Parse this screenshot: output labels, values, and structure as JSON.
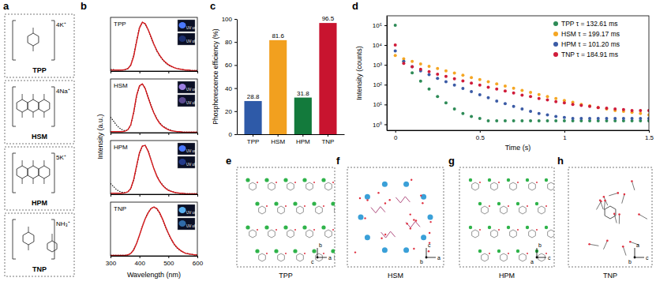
{
  "panel_labels": [
    "a",
    "b",
    "c",
    "d",
    "e",
    "f",
    "g",
    "h"
  ],
  "structures": [
    {
      "name": "TPP",
      "counterion": "4K⁺"
    },
    {
      "name": "HSM",
      "counterion": "4Na⁺"
    },
    {
      "name": "HPM",
      "counterion": "5K⁺"
    },
    {
      "name": "TNP",
      "counterion": "NH₃⁺"
    }
  ],
  "crystals": [
    {
      "name": "TPP",
      "axes": [
        "b",
        "a",
        "c"
      ]
    },
    {
      "name": "HSM",
      "axes": [
        "c",
        "a",
        "b"
      ]
    },
    {
      "name": "HPM",
      "axes": [
        "b",
        "c",
        "a"
      ]
    },
    {
      "name": "TNP",
      "axes": [
        "a",
        "c",
        "b"
      ]
    }
  ],
  "chart_data": [
    {
      "type": "line",
      "title": "TPP",
      "annotations": [
        "UV on",
        "UV off"
      ],
      "x": [
        300,
        310,
        320,
        330,
        340,
        350,
        360,
        370,
        380,
        390,
        400,
        410,
        420,
        430,
        440,
        450,
        460,
        470,
        480,
        490,
        500,
        510,
        520,
        530,
        540,
        550,
        560,
        570,
        580,
        590,
        600
      ],
      "series": [
        {
          "color": "#d7191c",
          "line_style": "solid",
          "values": [
            0.02,
            0.02,
            0.02,
            0.02,
            0.02,
            0.03,
            0.05,
            0.12,
            0.3,
            0.6,
            0.88,
            1.0,
            0.97,
            0.85,
            0.7,
            0.55,
            0.42,
            0.32,
            0.24,
            0.18,
            0.13,
            0.1,
            0.07,
            0.05,
            0.04,
            0.03,
            0.02,
            0.02,
            0.01,
            0.01,
            0.01
          ]
        },
        {
          "color": "#000000",
          "line_style": "dotted",
          "values": [
            0.03,
            0.03,
            0.02,
            0.02,
            0.02,
            0.03,
            0.05,
            0.13,
            0.32,
            0.62,
            0.9,
            1.0,
            0.96,
            0.84,
            0.69,
            0.54,
            0.41,
            0.31,
            0.23,
            0.17,
            0.12,
            0.09,
            0.07,
            0.05,
            0.04,
            0.03,
            0.02,
            0.02,
            0.01,
            0.01,
            0.01
          ]
        }
      ],
      "xlim": [
        300,
        600
      ],
      "ylim": [
        0,
        1.1
      ],
      "xticks": [
        300,
        400,
        500,
        600
      ],
      "tick_labels": false
    },
    {
      "type": "line",
      "title": "HSM",
      "annotations": [
        "UV on",
        "UV off"
      ],
      "x": [
        300,
        310,
        320,
        330,
        340,
        350,
        360,
        370,
        380,
        390,
        400,
        410,
        420,
        430,
        440,
        450,
        460,
        470,
        480,
        490,
        500,
        510,
        520,
        530,
        540,
        550,
        560,
        570,
        580,
        590,
        600
      ],
      "series": [
        {
          "color": "#d7191c",
          "line_style": "solid",
          "values": [
            0.02,
            0.02,
            0.02,
            0.02,
            0.02,
            0.03,
            0.06,
            0.16,
            0.42,
            0.76,
            0.96,
            1.0,
            0.9,
            0.72,
            0.55,
            0.4,
            0.28,
            0.19,
            0.13,
            0.09,
            0.06,
            0.04,
            0.03,
            0.02,
            0.02,
            0.01,
            0.01,
            0.01,
            0.01,
            0.01,
            0.01
          ]
        },
        {
          "color": "#000000",
          "line_style": "dotted",
          "values": [
            0.32,
            0.24,
            0.16,
            0.1,
            0.06,
            0.04,
            0.06,
            0.15,
            0.4,
            0.74,
            0.95,
            1.0,
            0.91,
            0.73,
            0.56,
            0.41,
            0.29,
            0.2,
            0.14,
            0.1,
            0.07,
            0.05,
            0.03,
            0.02,
            0.02,
            0.01,
            0.01,
            0.01,
            0.01,
            0.01,
            0.01
          ]
        }
      ],
      "xlim": [
        300,
        600
      ],
      "ylim": [
        0,
        1.1
      ],
      "xticks": [
        300,
        400,
        500,
        600
      ],
      "tick_labels": false
    },
    {
      "type": "line",
      "title": "HPM",
      "annotations": [
        "UV on",
        "UV off"
      ],
      "x": [
        300,
        310,
        320,
        330,
        340,
        350,
        360,
        370,
        380,
        390,
        400,
        410,
        420,
        430,
        440,
        450,
        460,
        470,
        480,
        490,
        500,
        510,
        520,
        530,
        540,
        550,
        560,
        570,
        580,
        590,
        600
      ],
      "series": [
        {
          "color": "#d7191c",
          "line_style": "solid",
          "values": [
            0.02,
            0.02,
            0.02,
            0.02,
            0.02,
            0.03,
            0.05,
            0.12,
            0.3,
            0.58,
            0.85,
            0.99,
            1.0,
            0.88,
            0.7,
            0.52,
            0.37,
            0.26,
            0.18,
            0.12,
            0.08,
            0.06,
            0.04,
            0.03,
            0.02,
            0.02,
            0.01,
            0.01,
            0.01,
            0.01,
            0.01
          ]
        },
        {
          "color": "#000000",
          "line_style": "dotted",
          "values": [
            0.22,
            0.16,
            0.1,
            0.06,
            0.04,
            0.03,
            0.05,
            0.11,
            0.28,
            0.56,
            0.84,
            0.98,
            1.0,
            0.89,
            0.71,
            0.53,
            0.38,
            0.27,
            0.19,
            0.13,
            0.09,
            0.06,
            0.04,
            0.03,
            0.02,
            0.02,
            0.01,
            0.01,
            0.01,
            0.01,
            0.01
          ]
        }
      ],
      "xlim": [
        300,
        600
      ],
      "ylim": [
        0,
        1.1
      ],
      "xticks": [
        300,
        400,
        500,
        600
      ],
      "tick_labels": false
    },
    {
      "type": "line",
      "title": "TNP",
      "annotations": [
        "UV on",
        "UV off"
      ],
      "x_label": "Wavelength (nm)",
      "y_label": "Intensity (a.u.)",
      "x": [
        300,
        310,
        320,
        330,
        340,
        350,
        360,
        370,
        380,
        390,
        400,
        410,
        420,
        430,
        440,
        450,
        460,
        470,
        480,
        490,
        500,
        510,
        520,
        530,
        540,
        550,
        560,
        570,
        580,
        590,
        600
      ],
      "series": [
        {
          "color": "#d7191c",
          "line_style": "solid",
          "values": [
            0.01,
            0.01,
            0.01,
            0.01,
            0.01,
            0.01,
            0.02,
            0.05,
            0.12,
            0.25,
            0.42,
            0.6,
            0.76,
            0.88,
            0.97,
            1.0,
            0.97,
            0.88,
            0.75,
            0.6,
            0.46,
            0.34,
            0.24,
            0.17,
            0.12,
            0.08,
            0.05,
            0.04,
            0.03,
            0.02,
            0.02
          ]
        },
        {
          "color": "#000000",
          "line_style": "dotted",
          "values": [
            0.01,
            0.01,
            0.01,
            0.01,
            0.01,
            0.01,
            0.02,
            0.05,
            0.13,
            0.26,
            0.43,
            0.61,
            0.77,
            0.89,
            0.97,
            1.0,
            0.96,
            0.87,
            0.74,
            0.59,
            0.45,
            0.33,
            0.23,
            0.16,
            0.11,
            0.08,
            0.05,
            0.04,
            0.03,
            0.02,
            0.02
          ]
        }
      ],
      "xlim": [
        300,
        600
      ],
      "ylim": [
        0,
        1.1
      ],
      "xticks": [
        300,
        400,
        500,
        600
      ],
      "tick_labels": "x"
    },
    {
      "type": "bar",
      "y_label": "Phosphorescence efficiency (%)",
      "categories": [
        "TPP",
        "HSM",
        "HPM",
        "TNP"
      ],
      "values": [
        28.8,
        81.6,
        31.8,
        96.5
      ],
      "colors": [
        "#2e5aa8",
        "#f2a01f",
        "#137a3c",
        "#c8142f"
      ],
      "ylim": [
        0,
        100
      ],
      "yticks": [
        0,
        20,
        40,
        60,
        80,
        100
      ],
      "data_labels": true
    },
    {
      "type": "scatter",
      "x_label": "Time (s)",
      "y_label": "Intensity (counts)",
      "log": "y",
      "legend": "upper right",
      "x": [
        0,
        0.05,
        0.1,
        0.15,
        0.2,
        0.25,
        0.3,
        0.35,
        0.4,
        0.45,
        0.5,
        0.55,
        0.6,
        0.65,
        0.7,
        0.75,
        0.8,
        0.85,
        0.9,
        0.95,
        1,
        1.05,
        1.1,
        1.15,
        1.2,
        1.25,
        1.3,
        1.35,
        1.4,
        1.45,
        1.5
      ],
      "series": [
        {
          "name": "TPP τ = 132.61 ms",
          "color": "#2e8b57",
          "marker": "circle",
          "values": [
            100000,
            1500,
            400,
            150,
            60,
            25,
            12,
            6,
            3.5,
            2.5,
            2,
            1.5,
            1.5,
            1.5,
            1.5,
            1.5,
            1.5,
            1.5,
            1.5,
            1.5,
            1.5,
            1.5,
            1.5,
            1.5,
            1.5,
            1.5,
            1.5,
            1.5,
            1.5,
            1.5,
            1.5
          ]
        },
        {
          "name": "HSM τ = 199.17 ms",
          "color": "#f5a623",
          "marker": "circle",
          "values": [
            3000,
            2000,
            1500,
            1100,
            850,
            650,
            500,
            390,
            300,
            230,
            180,
            140,
            110,
            85,
            66,
            52,
            41,
            32,
            25,
            20,
            16,
            13,
            10,
            8.5,
            7,
            6,
            5,
            4.5,
            4,
            3.5,
            3
          ]
        },
        {
          "name": "HPM τ = 101.20 ms",
          "color": "#3b5ba5",
          "marker": "circle",
          "values": [
            5000,
            1500,
            800,
            500,
            320,
            210,
            140,
            95,
            65,
            45,
            31,
            22,
            15,
            11,
            8,
            6,
            4.5,
            3.5,
            3,
            2.5,
            2.2,
            2,
            2,
            2,
            2,
            2,
            2,
            2,
            2,
            2,
            2
          ]
        },
        {
          "name": "TNP τ = 184.91 ms",
          "color": "#d01c3a",
          "marker": "circle",
          "values": [
            10000,
            1200,
            800,
            600,
            450,
            340,
            260,
            200,
            155,
            120,
            95,
            75,
            60,
            48,
            38,
            30,
            25,
            20,
            17,
            14,
            12,
            10,
            9,
            8,
            7,
            6.5,
            6,
            5.5,
            5,
            5,
            5
          ]
        }
      ],
      "xlim": [
        -0.05,
        1.5
      ],
      "ylim": [
        0.5,
        300000
      ],
      "xticks": [
        0,
        0.5,
        1,
        1.5
      ],
      "yticks": [
        {
          "value": 1,
          "label": "10⁰"
        },
        {
          "value": 10,
          "label": "10¹"
        },
        {
          "value": 100,
          "label": "10²"
        },
        {
          "value": 1000,
          "label": "10³"
        },
        {
          "value": 10000,
          "label": "10⁴"
        },
        {
          "value": 100000,
          "label": "10⁵"
        }
      ]
    }
  ]
}
